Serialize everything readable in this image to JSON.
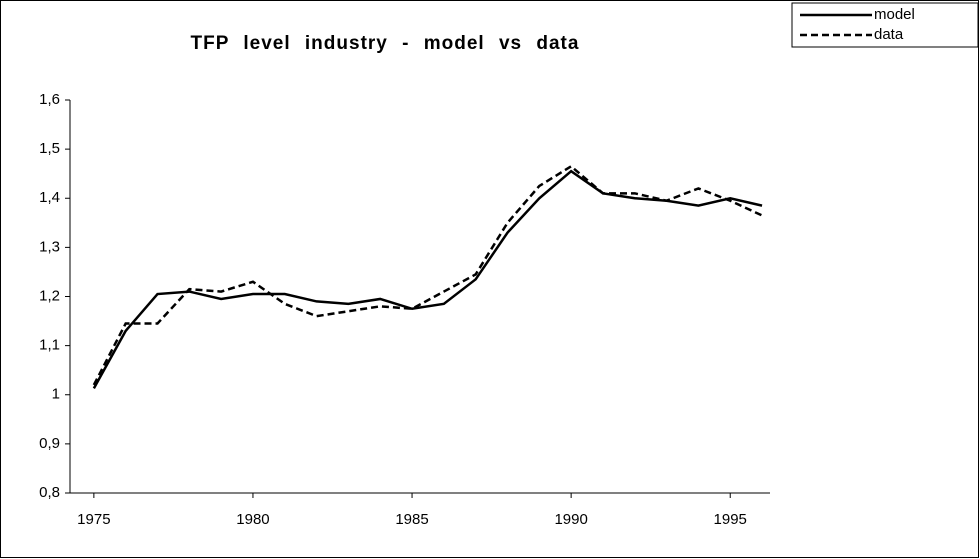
{
  "chart_data": {
    "type": "line",
    "title": "TFP level industry - model vs data",
    "x": [
      1975,
      1976,
      1977,
      1978,
      1979,
      1980,
      1981,
      1982,
      1983,
      1984,
      1985,
      1986,
      1987,
      1988,
      1989,
      1990,
      1991,
      1992,
      1993,
      1994,
      1995,
      1996
    ],
    "series": [
      {
        "name": "model",
        "color": "#000000",
        "dash": "solid",
        "values": [
          1.013,
          1.13,
          1.205,
          1.21,
          1.195,
          1.205,
          1.205,
          1.19,
          1.185,
          1.195,
          1.175,
          1.185,
          1.235,
          1.33,
          1.4,
          1.455,
          1.41,
          1.4,
          1.395,
          1.385,
          1.4,
          1.385
        ]
      },
      {
        "name": "data",
        "color": "#000000",
        "dash": "dashed",
        "values": [
          1.02,
          1.145,
          1.145,
          1.215,
          1.21,
          1.23,
          1.185,
          1.16,
          1.17,
          1.18,
          1.175,
          1.21,
          1.245,
          1.35,
          1.425,
          1.465,
          1.41,
          1.41,
          1.395,
          1.42,
          1.395,
          1.365
        ]
      }
    ],
    "xlim": [
      1974.25,
      1996.25
    ],
    "xticks": [
      1975,
      1980,
      1985,
      1990,
      1995
    ],
    "ylim": [
      0.8,
      1.6
    ],
    "yticks": [
      {
        "value": 0.8,
        "label": "0,8"
      },
      {
        "value": 0.9,
        "label": "0,9"
      },
      1,
      {
        "value": 1.1,
        "label": "1,1"
      },
      {
        "value": 1.2,
        "label": "1,2"
      },
      {
        "value": 1.3,
        "label": "1,3"
      },
      {
        "value": 1.4,
        "label": "1,4"
      },
      {
        "value": 1.5,
        "label": "1,5"
      },
      {
        "value": 1.6,
        "label": "1,6"
      }
    ],
    "grid": false,
    "legend": "top-right"
  }
}
